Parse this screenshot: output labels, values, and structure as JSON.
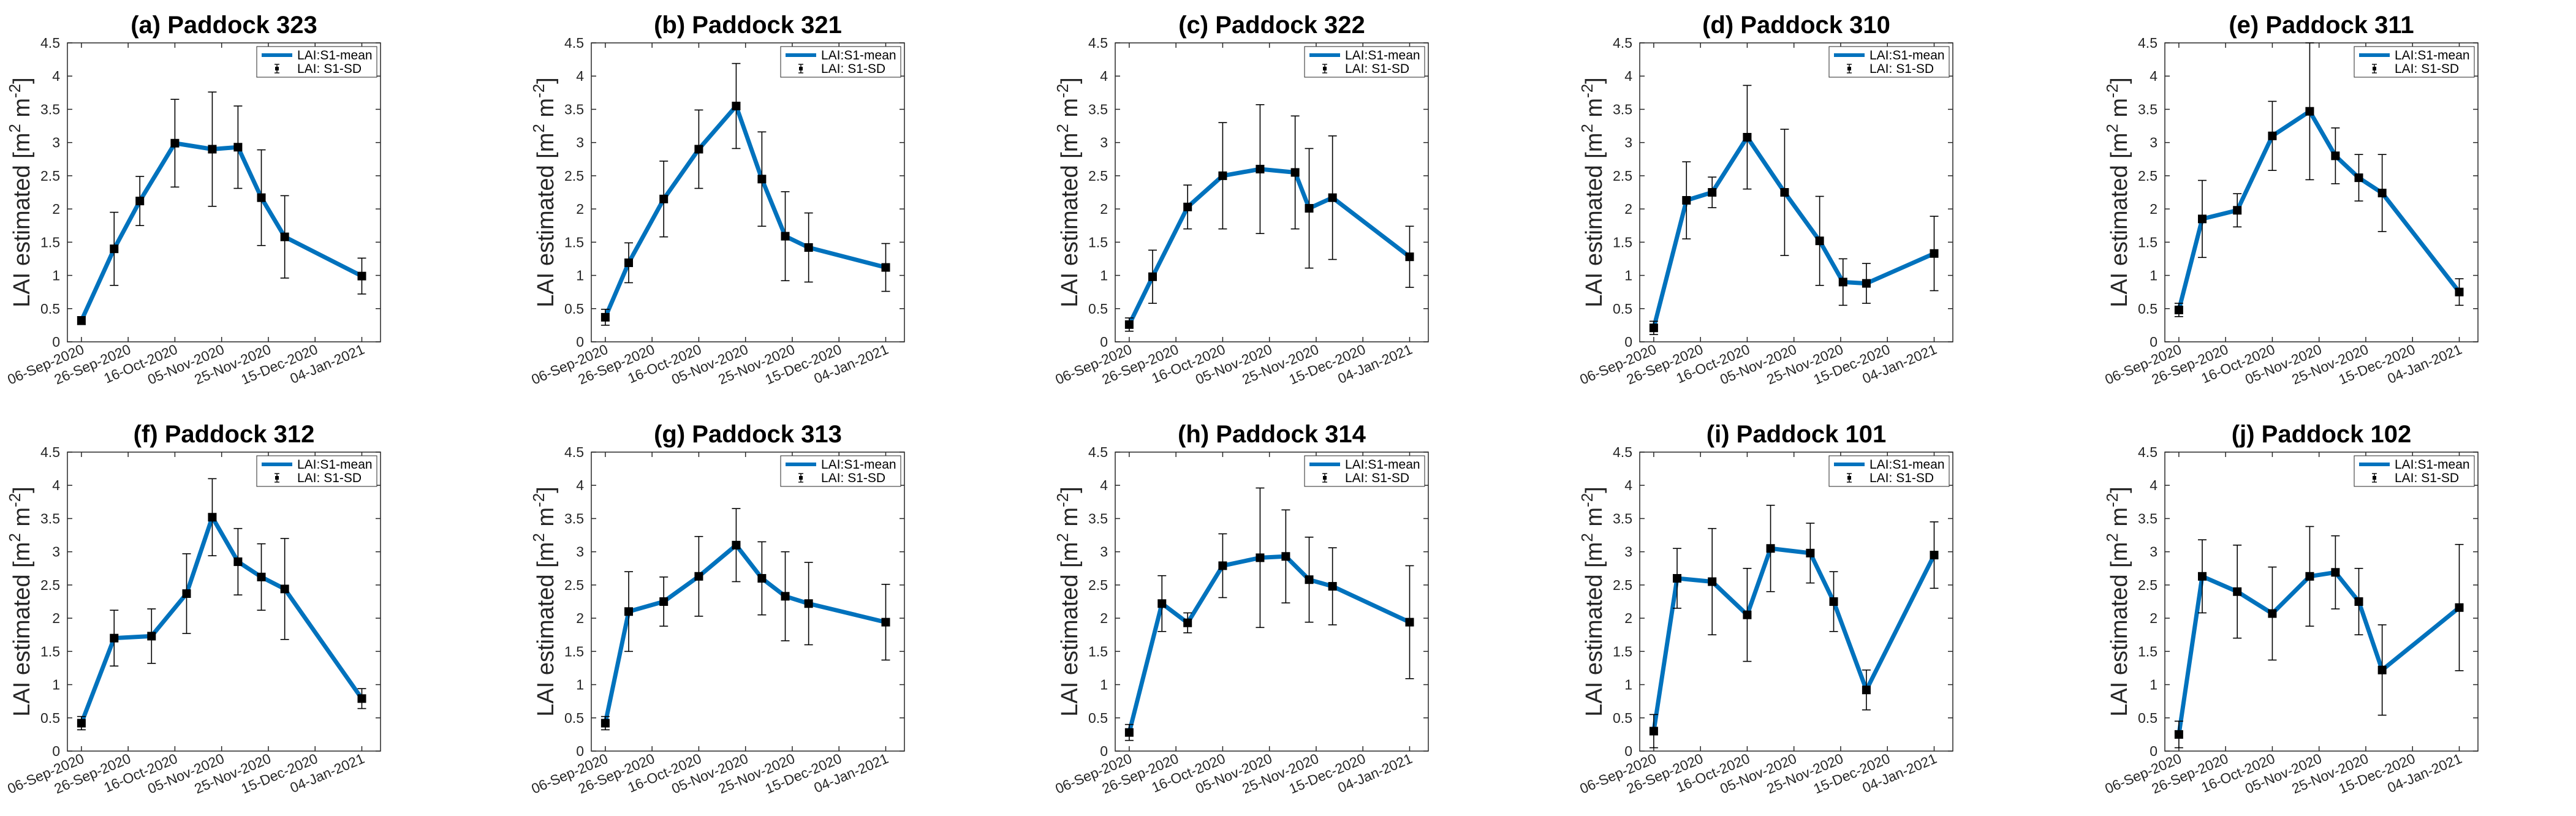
{
  "colors": {
    "series": "#0072BD",
    "errorbar": "#000000",
    "axis": "#262626"
  },
  "chart_data": [
    {
      "type": "line",
      "title": "(a) Paddock 323",
      "xlabel": "",
      "ylabel": "LAI estimated [m^2 m^-2]",
      "x": [
        "2020-09-06",
        "2020-09-20",
        "2020-10-01",
        "2020-10-16",
        "2020-11-01",
        "2020-11-12",
        "2020-11-22",
        "2020-12-02",
        "2021-01-04"
      ],
      "xlim": [
        "2020-08-31",
        "2021-01-12"
      ],
      "xticks": [
        "06-Sep-2020",
        "26-Sep-2020",
        "16-Oct-2020",
        "05-Nov-2020",
        "25-Nov-2020",
        "15-Dec-2020",
        "04-Jan-2021"
      ],
      "ylim": [
        0,
        4.5
      ],
      "yticks": [
        "0",
        "0.5",
        "1",
        "1.5",
        "2",
        "2.5",
        "3",
        "3.5",
        "4",
        "4.5"
      ],
      "series": [
        {
          "name": "LAI:S1-mean",
          "values": [
            0.32,
            1.4,
            2.12,
            2.99,
            2.9,
            2.93,
            2.17,
            1.58,
            0.99
          ],
          "sd": [
            0.06,
            0.55,
            0.37,
            0.66,
            0.86,
            0.62,
            0.72,
            0.62,
            0.27
          ]
        }
      ],
      "legend": {
        "entries": [
          "LAI:S1-mean",
          "LAI: S1-SD"
        ],
        "loc": "top-right"
      }
    },
    {
      "type": "line",
      "title": "(b) Paddock 321",
      "xlabel": "",
      "ylabel": "LAI estimated [m^2 m^-2]",
      "x": [
        "2020-09-06",
        "2020-09-16",
        "2020-10-01",
        "2020-10-16",
        "2020-11-01",
        "2020-11-12",
        "2020-11-22",
        "2020-12-02",
        "2021-01-04"
      ],
      "xlim": [
        "2020-08-31",
        "2021-01-12"
      ],
      "xticks": [
        "06-Sep-2020",
        "26-Sep-2020",
        "16-Oct-2020",
        "05-Nov-2020",
        "25-Nov-2020",
        "15-Dec-2020",
        "04-Jan-2021"
      ],
      "ylim": [
        0,
        4.5
      ],
      "yticks": [
        "0",
        "0.5",
        "1",
        "1.5",
        "2",
        "2.5",
        "3",
        "3.5",
        "4",
        "4.5"
      ],
      "series": [
        {
          "name": "LAI:S1-mean",
          "values": [
            0.37,
            1.19,
            2.15,
            2.9,
            3.55,
            2.45,
            1.59,
            1.42,
            1.12
          ],
          "sd": [
            0.12,
            0.3,
            0.57,
            0.59,
            0.64,
            0.71,
            0.67,
            0.52,
            0.36
          ]
        }
      ],
      "legend": {
        "entries": [
          "LAI:S1-mean",
          "LAI: S1-SD"
        ],
        "loc": "top-right"
      }
    },
    {
      "type": "line",
      "title": "(c) Paddock 322",
      "xlabel": "",
      "ylabel": "LAI estimated [m^2 m^-2]",
      "x": [
        "2020-09-06",
        "2020-09-16",
        "2020-10-01",
        "2020-10-16",
        "2020-11-01",
        "2020-11-16",
        "2020-11-22",
        "2020-12-02",
        "2021-01-04"
      ],
      "xlim": [
        "2020-08-31",
        "2021-01-12"
      ],
      "xticks": [
        "06-Sep-2020",
        "26-Sep-2020",
        "16-Oct-2020",
        "05-Nov-2020",
        "25-Nov-2020",
        "15-Dec-2020",
        "04-Jan-2021"
      ],
      "ylim": [
        0,
        4.5
      ],
      "yticks": [
        "0",
        "0.5",
        "1",
        "1.5",
        "2",
        "2.5",
        "3",
        "3.5",
        "4",
        "4.5"
      ],
      "series": [
        {
          "name": "LAI:S1-mean",
          "values": [
            0.26,
            0.98,
            2.03,
            2.5,
            2.6,
            2.55,
            2.01,
            2.17,
            1.28
          ],
          "sd": [
            0.1,
            0.4,
            0.33,
            0.8,
            0.97,
            0.85,
            0.9,
            0.93,
            0.46
          ]
        }
      ],
      "legend": {
        "entries": [
          "LAI:S1-mean",
          "LAI: S1-SD"
        ],
        "loc": "top-right"
      }
    },
    {
      "type": "line",
      "title": "(d) Paddock 310",
      "xlabel": "",
      "ylabel": "LAI estimated [m^2 m^-2]",
      "x": [
        "2020-09-06",
        "2020-09-20",
        "2020-10-01",
        "2020-10-16",
        "2020-11-01",
        "2020-11-16",
        "2020-11-26",
        "2020-12-06",
        "2021-01-04"
      ],
      "xlim": [
        "2020-08-31",
        "2021-01-12"
      ],
      "xticks": [
        "06-Sep-2020",
        "26-Sep-2020",
        "16-Oct-2020",
        "05-Nov-2020",
        "25-Nov-2020",
        "15-Dec-2020",
        "04-Jan-2021"
      ],
      "ylim": [
        0,
        4.5
      ],
      "yticks": [
        "0",
        "0.5",
        "1",
        "1.5",
        "2",
        "2.5",
        "3",
        "3.5",
        "4",
        "4.5"
      ],
      "series": [
        {
          "name": "LAI:S1-mean",
          "values": [
            0.21,
            2.13,
            2.25,
            3.08,
            2.25,
            1.52,
            0.9,
            0.88,
            1.33
          ],
          "sd": [
            0.1,
            0.58,
            0.23,
            0.78,
            0.95,
            0.67,
            0.35,
            0.3,
            0.56
          ]
        }
      ],
      "legend": {
        "entries": [
          "LAI:S1-mean",
          "LAI: S1-SD"
        ],
        "loc": "top-right"
      }
    },
    {
      "type": "line",
      "title": "(e) Paddock 311",
      "xlabel": "",
      "ylabel": "LAI estimated [m^2 m^-2]",
      "x": [
        "2020-09-06",
        "2020-09-16",
        "2020-10-01",
        "2020-10-16",
        "2020-11-01",
        "2020-11-12",
        "2020-11-22",
        "2020-12-02",
        "2021-01-04"
      ],
      "xlim": [
        "2020-08-31",
        "2021-01-12"
      ],
      "xticks": [
        "06-Sep-2020",
        "26-Sep-2020",
        "16-Oct-2020",
        "05-Nov-2020",
        "25-Nov-2020",
        "15-Dec-2020",
        "04-Jan-2021"
      ],
      "ylim": [
        0,
        4.5
      ],
      "yticks": [
        "0",
        "0.5",
        "1",
        "1.5",
        "2",
        "2.5",
        "3",
        "3.5",
        "4",
        "4.5"
      ],
      "series": [
        {
          "name": "LAI:S1-mean",
          "values": [
            0.48,
            1.85,
            1.98,
            3.1,
            3.47,
            2.8,
            2.47,
            2.24,
            0.75
          ],
          "sd": [
            0.1,
            0.58,
            0.25,
            0.52,
            1.03,
            0.42,
            0.35,
            0.58,
            0.2
          ]
        }
      ],
      "legend": {
        "entries": [
          "LAI:S1-mean",
          "LAI: S1-SD"
        ],
        "loc": "top-right"
      }
    },
    {
      "type": "line",
      "title": "(f) Paddock 312",
      "xlabel": "",
      "ylabel": "LAI estimated [m^2 m^-2]",
      "x": [
        "2020-09-06",
        "2020-09-20",
        "2020-10-06",
        "2020-10-21",
        "2020-11-01",
        "2020-11-12",
        "2020-11-22",
        "2020-12-02",
        "2021-01-04"
      ],
      "xlim": [
        "2020-08-31",
        "2021-01-12"
      ],
      "xticks": [
        "06-Sep-2020",
        "26-Sep-2020",
        "16-Oct-2020",
        "05-Nov-2020",
        "25-Nov-2020",
        "15-Dec-2020",
        "04-Jan-2021"
      ],
      "ylim": [
        0,
        4.5
      ],
      "yticks": [
        "0",
        "0.5",
        "1",
        "1.5",
        "2",
        "2.5",
        "3",
        "3.5",
        "4",
        "4.5"
      ],
      "series": [
        {
          "name": "LAI:S1-mean",
          "values": [
            0.42,
            1.7,
            1.73,
            2.37,
            3.52,
            2.85,
            2.62,
            2.44,
            0.79
          ],
          "sd": [
            0.1,
            0.42,
            0.41,
            0.6,
            0.58,
            0.5,
            0.5,
            0.76,
            0.15
          ]
        }
      ],
      "legend": {
        "entries": [
          "LAI:S1-mean",
          "LAI: S1-SD"
        ],
        "loc": "top-right"
      }
    },
    {
      "type": "line",
      "title": "(g) Paddock 313",
      "xlabel": "",
      "ylabel": "LAI estimated [m^2 m^-2]",
      "x": [
        "2020-09-06",
        "2020-09-16",
        "2020-10-01",
        "2020-10-16",
        "2020-11-01",
        "2020-11-12",
        "2020-11-22",
        "2020-12-02",
        "2021-01-04"
      ],
      "xlim": [
        "2020-08-31",
        "2021-01-12"
      ],
      "xticks": [
        "06-Sep-2020",
        "26-Sep-2020",
        "16-Oct-2020",
        "05-Nov-2020",
        "25-Nov-2020",
        "15-Dec-2020",
        "04-Jan-2021"
      ],
      "ylim": [
        0,
        4.5
      ],
      "yticks": [
        "0",
        "0.5",
        "1",
        "1.5",
        "2",
        "2.5",
        "3",
        "3.5",
        "4",
        "4.5"
      ],
      "series": [
        {
          "name": "LAI:S1-mean",
          "values": [
            0.42,
            2.1,
            2.25,
            2.63,
            3.1,
            2.6,
            2.33,
            2.22,
            1.94
          ],
          "sd": [
            0.1,
            0.6,
            0.37,
            0.6,
            0.55,
            0.55,
            0.67,
            0.62,
            0.57
          ]
        }
      ],
      "legend": {
        "entries": [
          "LAI:S1-mean",
          "LAI: S1-SD"
        ],
        "loc": "top-right"
      }
    },
    {
      "type": "line",
      "title": "(h) Paddock 314",
      "xlabel": "",
      "ylabel": "LAI estimated [m^2 m^-2]",
      "x": [
        "2020-09-06",
        "2020-09-20",
        "2020-10-01",
        "2020-10-16",
        "2020-11-01",
        "2020-11-12",
        "2020-11-22",
        "2020-12-02",
        "2021-01-04"
      ],
      "xlim": [
        "2020-08-31",
        "2021-01-12"
      ],
      "xticks": [
        "06-Sep-2020",
        "26-Sep-2020",
        "16-Oct-2020",
        "05-Nov-2020",
        "25-Nov-2020",
        "15-Dec-2020",
        "04-Jan-2021"
      ],
      "ylim": [
        0,
        4.5
      ],
      "yticks": [
        "0",
        "0.5",
        "1",
        "1.5",
        "2",
        "2.5",
        "3",
        "3.5",
        "4",
        "4.5"
      ],
      "series": [
        {
          "name": "LAI:S1-mean",
          "values": [
            0.28,
            2.22,
            1.93,
            2.79,
            2.91,
            2.93,
            2.58,
            2.48,
            1.94
          ],
          "sd": [
            0.12,
            0.42,
            0.15,
            0.48,
            1.05,
            0.7,
            0.64,
            0.58,
            0.85
          ]
        }
      ],
      "legend": {
        "entries": [
          "LAI:S1-mean",
          "LAI: S1-SD"
        ],
        "loc": "top-right"
      }
    },
    {
      "type": "line",
      "title": "(i) Paddock 101",
      "xlabel": "",
      "ylabel": "LAI estimated [m^2 m^-2]",
      "x": [
        "2020-09-06",
        "2020-09-16",
        "2020-10-01",
        "2020-10-16",
        "2020-10-26",
        "2020-11-12",
        "2020-11-22",
        "2020-12-06",
        "2021-01-04"
      ],
      "xlim": [
        "2020-08-31",
        "2021-01-12"
      ],
      "xticks": [
        "06-Sep-2020",
        "26-Sep-2020",
        "16-Oct-2020",
        "05-Nov-2020",
        "25-Nov-2020",
        "15-Dec-2020",
        "04-Jan-2021"
      ],
      "ylim": [
        0,
        4.5
      ],
      "yticks": [
        "0",
        "0.5",
        "1",
        "1.5",
        "2",
        "2.5",
        "3",
        "3.5",
        "4",
        "4.5"
      ],
      "series": [
        {
          "name": "LAI:S1-mean",
          "values": [
            0.3,
            2.6,
            2.55,
            2.05,
            3.05,
            2.98,
            2.25,
            0.92,
            2.95
          ],
          "sd": [
            0.25,
            0.45,
            0.8,
            0.7,
            0.65,
            0.45,
            0.45,
            0.3,
            0.5
          ]
        }
      ],
      "legend": {
        "entries": [
          "LAI:S1-mean",
          "LAI: S1-SD"
        ],
        "loc": "top-right"
      }
    },
    {
      "type": "line",
      "title": "(j) Paddock 102",
      "xlabel": "",
      "ylabel": "LAI estimated [m^2 m^-2]",
      "x": [
        "2020-09-06",
        "2020-09-16",
        "2020-10-01",
        "2020-10-16",
        "2020-11-01",
        "2020-11-12",
        "2020-11-22",
        "2020-12-02",
        "2021-01-04"
      ],
      "xlim": [
        "2020-08-31",
        "2021-01-12"
      ],
      "xticks": [
        "06-Sep-2020",
        "26-Sep-2020",
        "16-Oct-2020",
        "05-Nov-2020",
        "25-Nov-2020",
        "15-Dec-2020",
        "04-Jan-2021"
      ],
      "ylim": [
        0,
        4.5
      ],
      "yticks": [
        "0",
        "0.5",
        "1",
        "1.5",
        "2",
        "2.5",
        "3",
        "3.5",
        "4",
        "4.5"
      ],
      "series": [
        {
          "name": "LAI:S1-mean",
          "values": [
            0.25,
            2.63,
            2.4,
            2.07,
            2.63,
            2.69,
            2.25,
            1.22,
            2.16
          ],
          "sd": [
            0.2,
            0.55,
            0.7,
            0.7,
            0.75,
            0.55,
            0.5,
            0.68,
            0.95
          ]
        }
      ],
      "legend": {
        "entries": [
          "LAI:S1-mean",
          "LAI: S1-SD"
        ],
        "loc": "top-right"
      }
    }
  ]
}
